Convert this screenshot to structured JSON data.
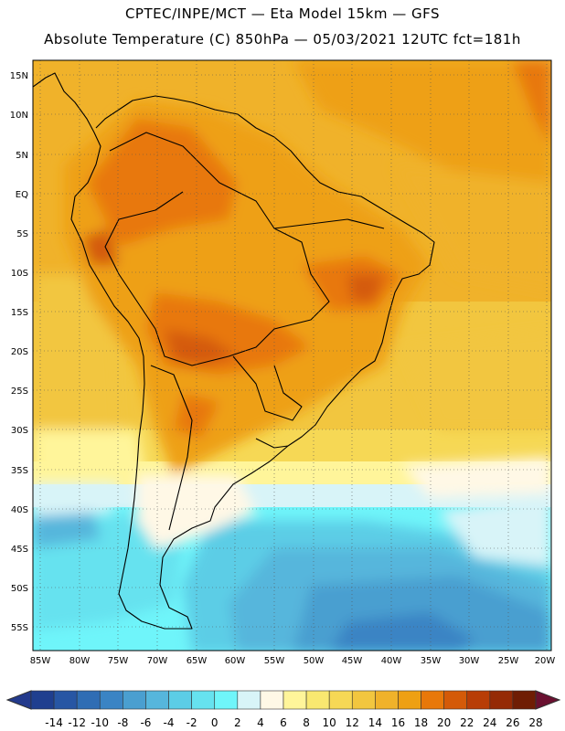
{
  "header": {
    "title_line1": "CPTEC/INPE/MCT —  Eta Model 15km — GFS",
    "title_line2": "Absolute Temperature (C) 850hPa — 05/03/2021 12UTC fct=181h"
  },
  "map": {
    "lat_labels": [
      "15N",
      "10N",
      "5N",
      "EQ",
      "5S",
      "10S",
      "15S",
      "20S",
      "25S",
      "30S",
      "35S",
      "40S",
      "45S",
      "50S",
      "55S"
    ],
    "lon_labels": [
      "85W",
      "80W",
      "75W",
      "70W",
      "65W",
      "60W",
      "55W",
      "50W",
      "45W",
      "40W",
      "35W",
      "30W",
      "25W",
      "20W"
    ]
  },
  "colorbar": {
    "labels": [
      "-14",
      "-12",
      "-10",
      "-8",
      "-6",
      "-4",
      "-2",
      "0",
      "2",
      "4",
      "6",
      "8",
      "10",
      "12",
      "14",
      "16",
      "18",
      "20",
      "22",
      "24",
      "26",
      "28"
    ],
    "colors": [
      "#1f3f8f",
      "#2756a4",
      "#2f6db4",
      "#3a84c4",
      "#4a9fd0",
      "#56b6dc",
      "#5ccde6",
      "#66e2ef",
      "#6ff5fa",
      "#d8f4f8",
      "#fff8e6",
      "#fff59a",
      "#f9e870",
      "#f6d855",
      "#f2c63f",
      "#f0b22a",
      "#eea013",
      "#e8780a",
      "#d45a08",
      "#b83d06",
      "#952a05",
      "#6f1d04"
    ],
    "under_color": "#233a8c",
    "over_color": "#6a1030"
  }
}
